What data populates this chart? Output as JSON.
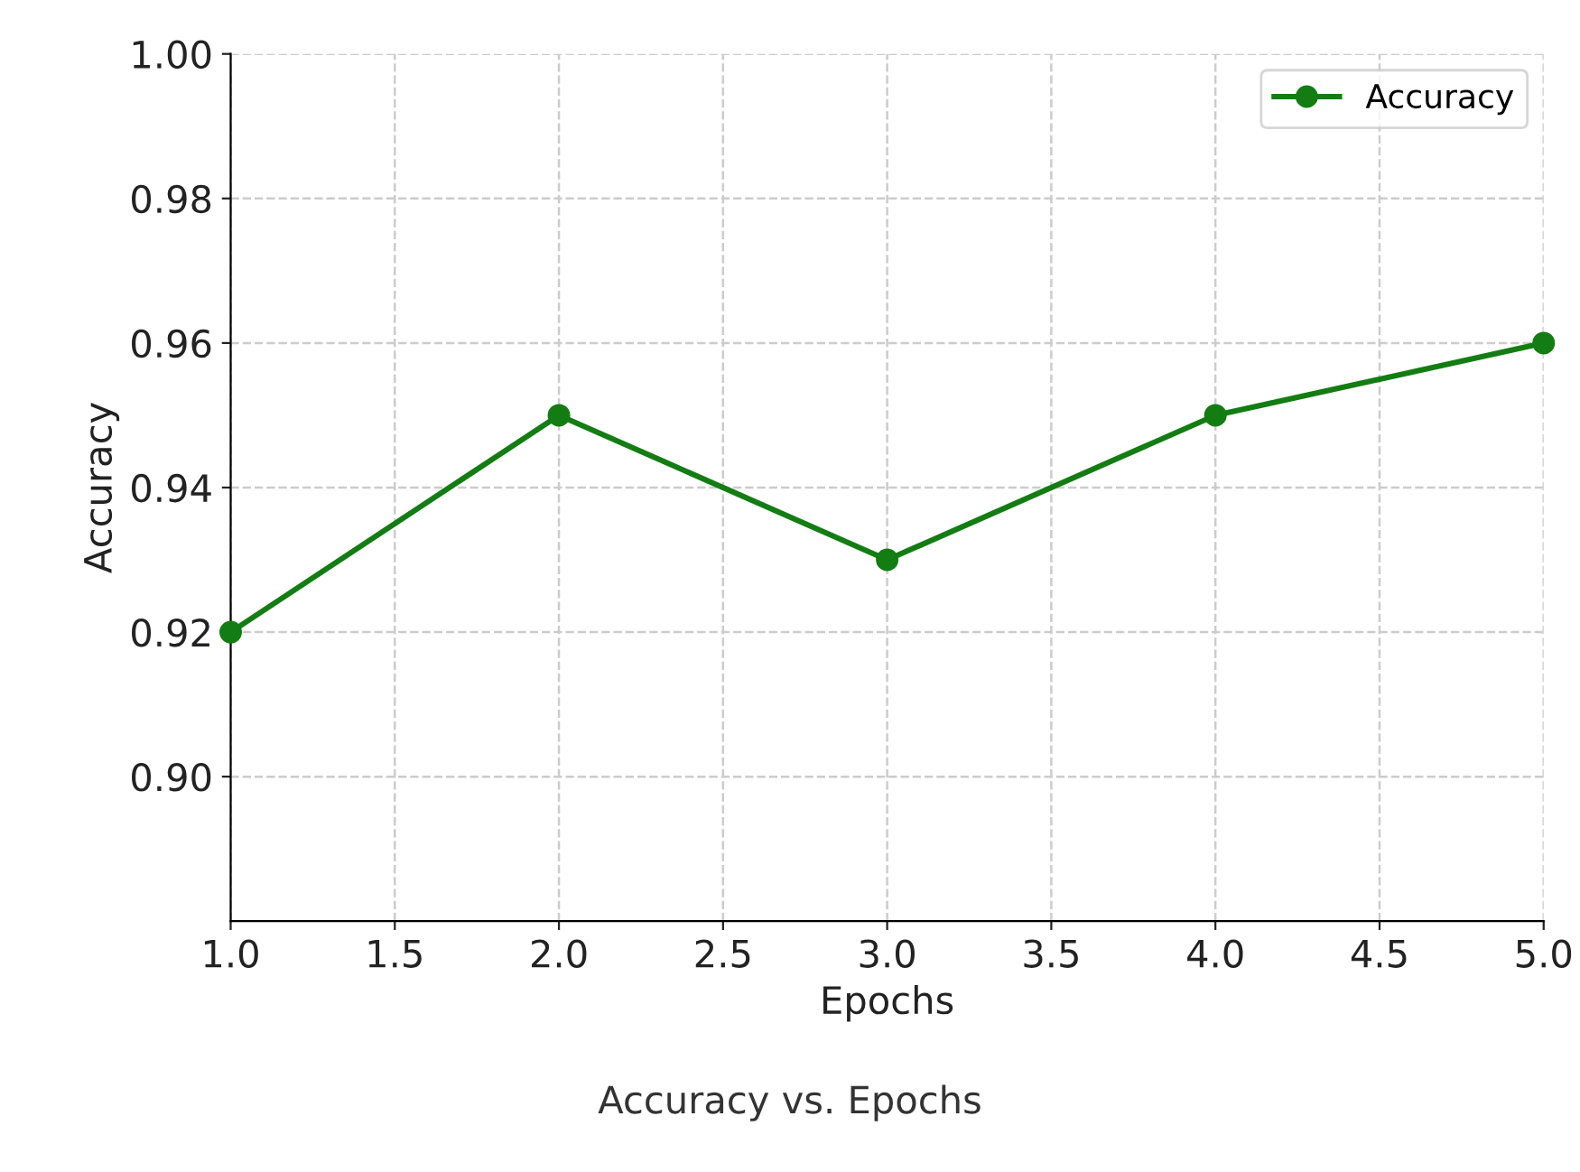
{
  "chart_data": {
    "type": "line",
    "title": "Accuracy vs. Epochs",
    "xlabel": "Epochs",
    "ylabel": "Accuracy",
    "x": [
      1,
      2,
      3,
      4,
      5
    ],
    "series": [
      {
        "name": "Accuracy",
        "color": "#137d13",
        "values": [
          0.92,
          0.95,
          0.93,
          0.95,
          0.96
        ]
      }
    ],
    "xlim": [
      1,
      5
    ],
    "xticks": [
      {
        "value": 1,
        "label": "1.0"
      },
      {
        "value": 1.5,
        "label": "1.5"
      },
      {
        "value": 2,
        "label": "2.0"
      },
      {
        "value": 2.5,
        "label": "2.5"
      },
      {
        "value": 3,
        "label": "3.0"
      },
      {
        "value": 3.5,
        "label": "3.5"
      },
      {
        "value": 4,
        "label": "4.0"
      },
      {
        "value": 4.5,
        "label": "4.5"
      },
      {
        "value": 5,
        "label": "5.0"
      }
    ],
    "ylim": [
      0.88,
      1.0
    ],
    "yticks": [
      {
        "value": 0.9,
        "label": "0.90"
      },
      {
        "value": 0.92,
        "label": "0.92"
      },
      {
        "value": 0.94,
        "label": "0.94"
      },
      {
        "value": 0.96,
        "label": "0.96"
      },
      {
        "value": 0.98,
        "label": "0.98"
      },
      {
        "value": 1.0,
        "label": "1.00"
      }
    ],
    "grid": true,
    "legend": "top right",
    "marker": "circle",
    "line_style": "solid"
  }
}
